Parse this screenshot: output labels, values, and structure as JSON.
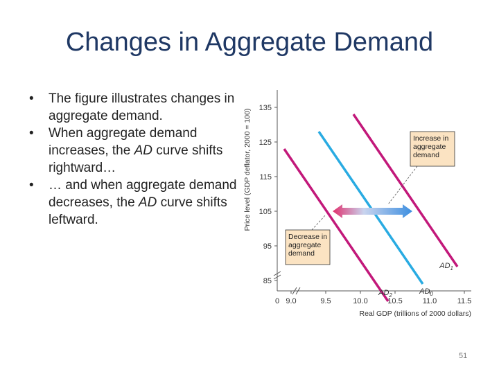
{
  "slide": {
    "title": "Changes in Aggregate Demand",
    "page_number": "51"
  },
  "bullets": [
    {
      "before": "The figure illustrates changes in aggregate demand.",
      "italic": "",
      "after": ""
    },
    {
      "before": "When aggregate demand increases, the ",
      "italic": "AD",
      "after": " curve shifts rightward…"
    },
    {
      "before": "… and when aggregate demand decreases, the ",
      "italic": "AD",
      "after": " curve shifts leftward."
    }
  ],
  "colors": {
    "title": "#1f3864",
    "ad0": "#29abe2",
    "ad1_ad2": "#c2187a",
    "arrow_left": "#e0306e",
    "arrow_right": "#3d8fe0",
    "annotation_box": "#fbe3c2"
  },
  "chart_data": {
    "type": "line",
    "ylabel": "Price level (GDP deflator, 2000 = 100)",
    "xlabel": "Real GDP (trillions of 2000 dollars)",
    "x_ticks": [
      "0",
      "9.0",
      "9.5",
      "10.0",
      "10.5",
      "11.0",
      "11.5"
    ],
    "y_ticks": [
      "85",
      "95",
      "105",
      "115",
      "125",
      "135"
    ],
    "xlim": [
      8.8,
      11.6
    ],
    "ylim": [
      82,
      140
    ],
    "axis_breaks": true,
    "grid": false,
    "series": [
      {
        "name": "AD0",
        "label_main": "AD",
        "label_sub": "0",
        "color": "#29abe2",
        "x": [
          9.4,
          10.9
        ],
        "y": [
          128,
          84
        ]
      },
      {
        "name": "AD1",
        "label_main": "AD",
        "label_sub": "1",
        "color": "#c2187a",
        "x": [
          9.9,
          11.4
        ],
        "y": [
          133,
          89
        ]
      },
      {
        "name": "AD2",
        "label_main": "AD",
        "label_sub": "2",
        "color": "#c2187a",
        "x": [
          8.9,
          10.4
        ],
        "y": [
          123,
          79
        ]
      }
    ],
    "shift_arrows": {
      "y": 105,
      "left_x": 9.6,
      "center_x": 10.05,
      "right_x": 10.75
    },
    "annotations": [
      {
        "id": "increase",
        "lines": [
          "Increase in",
          "aggregate",
          "demand"
        ],
        "target_x": 10.4,
        "target_y": 107
      },
      {
        "id": "decrease",
        "lines": [
          "Decrease in",
          "aggregate",
          "demand"
        ],
        "target_x": 9.5,
        "target_y": 104
      }
    ]
  }
}
